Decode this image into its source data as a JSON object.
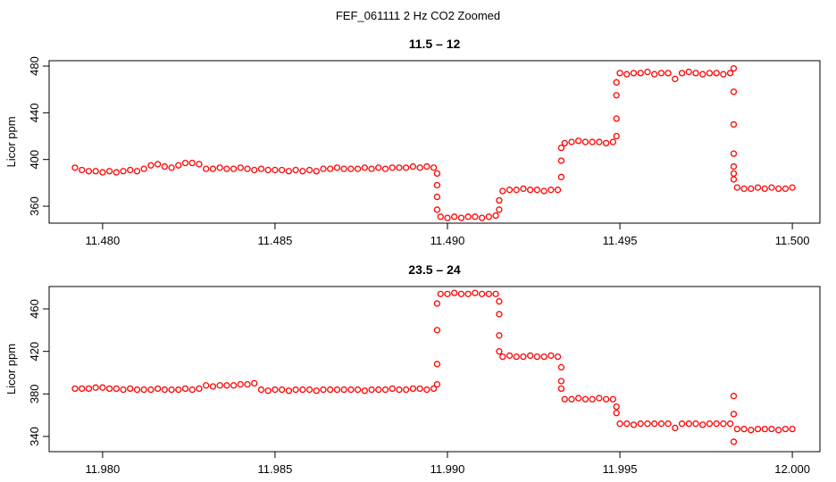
{
  "title": "FEF_061111  2 Hz CO2 Zoomed",
  "chart_data": [
    {
      "type": "scatter",
      "title": "11.5 – 12",
      "y_label": "Licor ppm",
      "color": "#ff0000",
      "xlim": [
        11.47845,
        11.5008
      ],
      "ylim": [
        345.5,
        484.6
      ],
      "xticks": [
        {
          "value": 11.48,
          "label": "11.480"
        },
        {
          "value": 11.485,
          "label": "11.485"
        },
        {
          "value": 11.49,
          "label": "11.490"
        },
        {
          "value": 11.495,
          "label": "11.495"
        },
        {
          "value": 11.5,
          "label": "11.500"
        }
      ],
      "yticks": [
        360,
        400,
        440,
        480
      ],
      "x": [
        11.4792,
        11.4794,
        11.4796,
        11.4798,
        11.48,
        11.4802,
        11.4804,
        11.4806,
        11.4808,
        11.481,
        11.4812,
        11.4814,
        11.4816,
        11.4818,
        11.482,
        11.4822,
        11.4824,
        11.4826,
        11.4828,
        11.483,
        11.4832,
        11.4834,
        11.4836,
        11.4838,
        11.484,
        11.4842,
        11.4844,
        11.4846,
        11.4848,
        11.485,
        11.4852,
        11.4854,
        11.4856,
        11.4858,
        11.486,
        11.4862,
        11.4864,
        11.4866,
        11.4868,
        11.487,
        11.4872,
        11.4874,
        11.4876,
        11.4878,
        11.488,
        11.4882,
        11.4884,
        11.4886,
        11.4888,
        11.489,
        11.4892,
        11.4894,
        11.4896,
        11.4897,
        11.4897,
        11.4897,
        11.4897,
        11.4898,
        11.49,
        11.4902,
        11.4904,
        11.4906,
        11.4908,
        11.491,
        11.4912,
        11.4914,
        11.4915,
        11.4915,
        11.4916,
        11.4918,
        11.492,
        11.4922,
        11.4924,
        11.4926,
        11.4928,
        11.493,
        11.4932,
        11.4933,
        11.4933,
        11.4933,
        11.4934,
        11.4936,
        11.4938,
        11.494,
        11.4942,
        11.4944,
        11.4946,
        11.4948,
        11.4949,
        11.4949,
        11.4949,
        11.4949,
        11.495,
        11.4952,
        11.4954,
        11.4956,
        11.4958,
        11.496,
        11.4962,
        11.4964,
        11.4966,
        11.4968,
        11.497,
        11.4972,
        11.4974,
        11.4976,
        11.4978,
        11.498,
        11.4982,
        11.4983,
        11.4983,
        11.4983,
        11.4983,
        11.4983,
        11.4983,
        11.4983,
        11.4984,
        11.4986,
        11.4988,
        11.499,
        11.4992,
        11.4994,
        11.4996,
        11.4998,
        11.5
      ],
      "values": [
        393,
        391,
        390,
        390,
        389,
        390,
        389,
        390,
        391,
        390,
        392,
        395,
        396,
        394,
        393,
        395,
        397,
        397,
        396,
        392,
        392,
        393,
        392,
        392,
        393,
        392,
        391,
        392,
        391,
        391,
        391,
        390,
        391,
        390,
        391,
        390,
        392,
        392,
        393,
        392,
        392,
        392,
        393,
        392,
        393,
        392,
        393,
        393,
        393,
        394,
        393,
        394,
        393,
        388,
        378,
        368,
        357,
        351,
        350,
        351,
        350,
        351,
        351,
        350,
        351,
        352,
        357,
        365,
        373,
        374,
        374,
        375,
        374,
        374,
        373,
        374,
        374,
        385,
        399,
        410,
        414,
        415,
        416,
        415,
        415,
        415,
        414,
        415,
        420,
        435,
        455,
        466,
        474,
        473,
        474,
        474,
        475,
        473,
        474,
        474,
        469,
        474,
        475,
        474,
        473,
        474,
        474,
        473,
        474,
        478,
        458,
        430,
        405,
        394,
        388,
        383,
        376,
        375,
        375,
        376,
        375,
        376,
        375,
        375,
        376
      ]
    },
    {
      "type": "scatter",
      "title": "23.5 – 24",
      "y_label": "Licor ppm",
      "color": "#ff0000",
      "xlim": [
        11.97845,
        12.0008
      ],
      "ylim": [
        325.7,
        481
      ],
      "xticks": [
        {
          "value": 11.98,
          "label": "11.980"
        },
        {
          "value": 11.985,
          "label": "11.985"
        },
        {
          "value": 11.99,
          "label": "11.990"
        },
        {
          "value": 11.995,
          "label": "11.995"
        },
        {
          "value": 12,
          "label": "12.000"
        }
      ],
      "yticks": [
        340,
        380,
        420,
        460
      ],
      "x": [
        11.9792,
        11.9794,
        11.9796,
        11.9798,
        11.98,
        11.9802,
        11.9804,
        11.9806,
        11.9808,
        11.981,
        11.9812,
        11.9814,
        11.9816,
        11.9818,
        11.982,
        11.9822,
        11.9824,
        11.9826,
        11.9828,
        11.983,
        11.9832,
        11.9834,
        11.9836,
        11.9838,
        11.984,
        11.9842,
        11.9844,
        11.9846,
        11.9848,
        11.985,
        11.9852,
        11.9854,
        11.9856,
        11.9858,
        11.986,
        11.9862,
        11.9864,
        11.9866,
        11.9868,
        11.987,
        11.9872,
        11.9874,
        11.9876,
        11.9878,
        11.988,
        11.9882,
        11.9884,
        11.9886,
        11.9888,
        11.989,
        11.9892,
        11.9894,
        11.9896,
        11.9897,
        11.9897,
        11.9897,
        11.9897,
        11.9898,
        11.99,
        11.9902,
        11.9904,
        11.9906,
        11.9908,
        11.991,
        11.9912,
        11.9914,
        11.9915,
        11.9915,
        11.9915,
        11.9915,
        11.9916,
        11.9918,
        11.992,
        11.9922,
        11.9924,
        11.9926,
        11.9928,
        11.993,
        11.9932,
        11.9933,
        11.9933,
        11.9933,
        11.9934,
        11.9936,
        11.9938,
        11.994,
        11.9942,
        11.9944,
        11.9946,
        11.9948,
        11.9949,
        11.9949,
        11.995,
        11.9952,
        11.9954,
        11.9956,
        11.9958,
        11.996,
        11.9962,
        11.9964,
        11.9966,
        11.9968,
        11.997,
        11.9972,
        11.9974,
        11.9976,
        11.9978,
        11.998,
        11.9982,
        11.9983,
        11.9983,
        11.9983,
        11.9984,
        11.9986,
        11.9988,
        11.999,
        11.9992,
        11.9994,
        11.9996,
        11.9998,
        12
      ],
      "values": [
        385,
        385,
        385,
        386,
        386,
        385,
        385,
        384,
        385,
        384,
        384,
        384,
        385,
        384,
        384,
        384,
        385,
        384,
        385,
        388,
        387,
        388,
        388,
        388,
        389,
        389,
        390,
        384,
        383,
        384,
        384,
        383,
        384,
        384,
        384,
        383,
        384,
        384,
        384,
        384,
        384,
        384,
        383,
        384,
        384,
        384,
        385,
        384,
        384,
        385,
        385,
        384,
        385,
        389,
        408,
        440,
        465,
        474,
        474,
        475,
        474,
        474,
        475,
        474,
        474,
        474,
        467,
        455,
        435,
        420,
        415,
        416,
        415,
        415,
        416,
        415,
        415,
        416,
        415,
        405,
        392,
        385,
        375,
        375,
        376,
        375,
        375,
        376,
        375,
        375,
        368,
        362,
        352,
        352,
        351,
        352,
        352,
        352,
        352,
        352,
        348,
        352,
        352,
        352,
        351,
        352,
        352,
        352,
        352,
        378,
        361,
        335,
        347,
        347,
        346,
        347,
        347,
        347,
        346,
        347,
        347
      ]
    }
  ]
}
